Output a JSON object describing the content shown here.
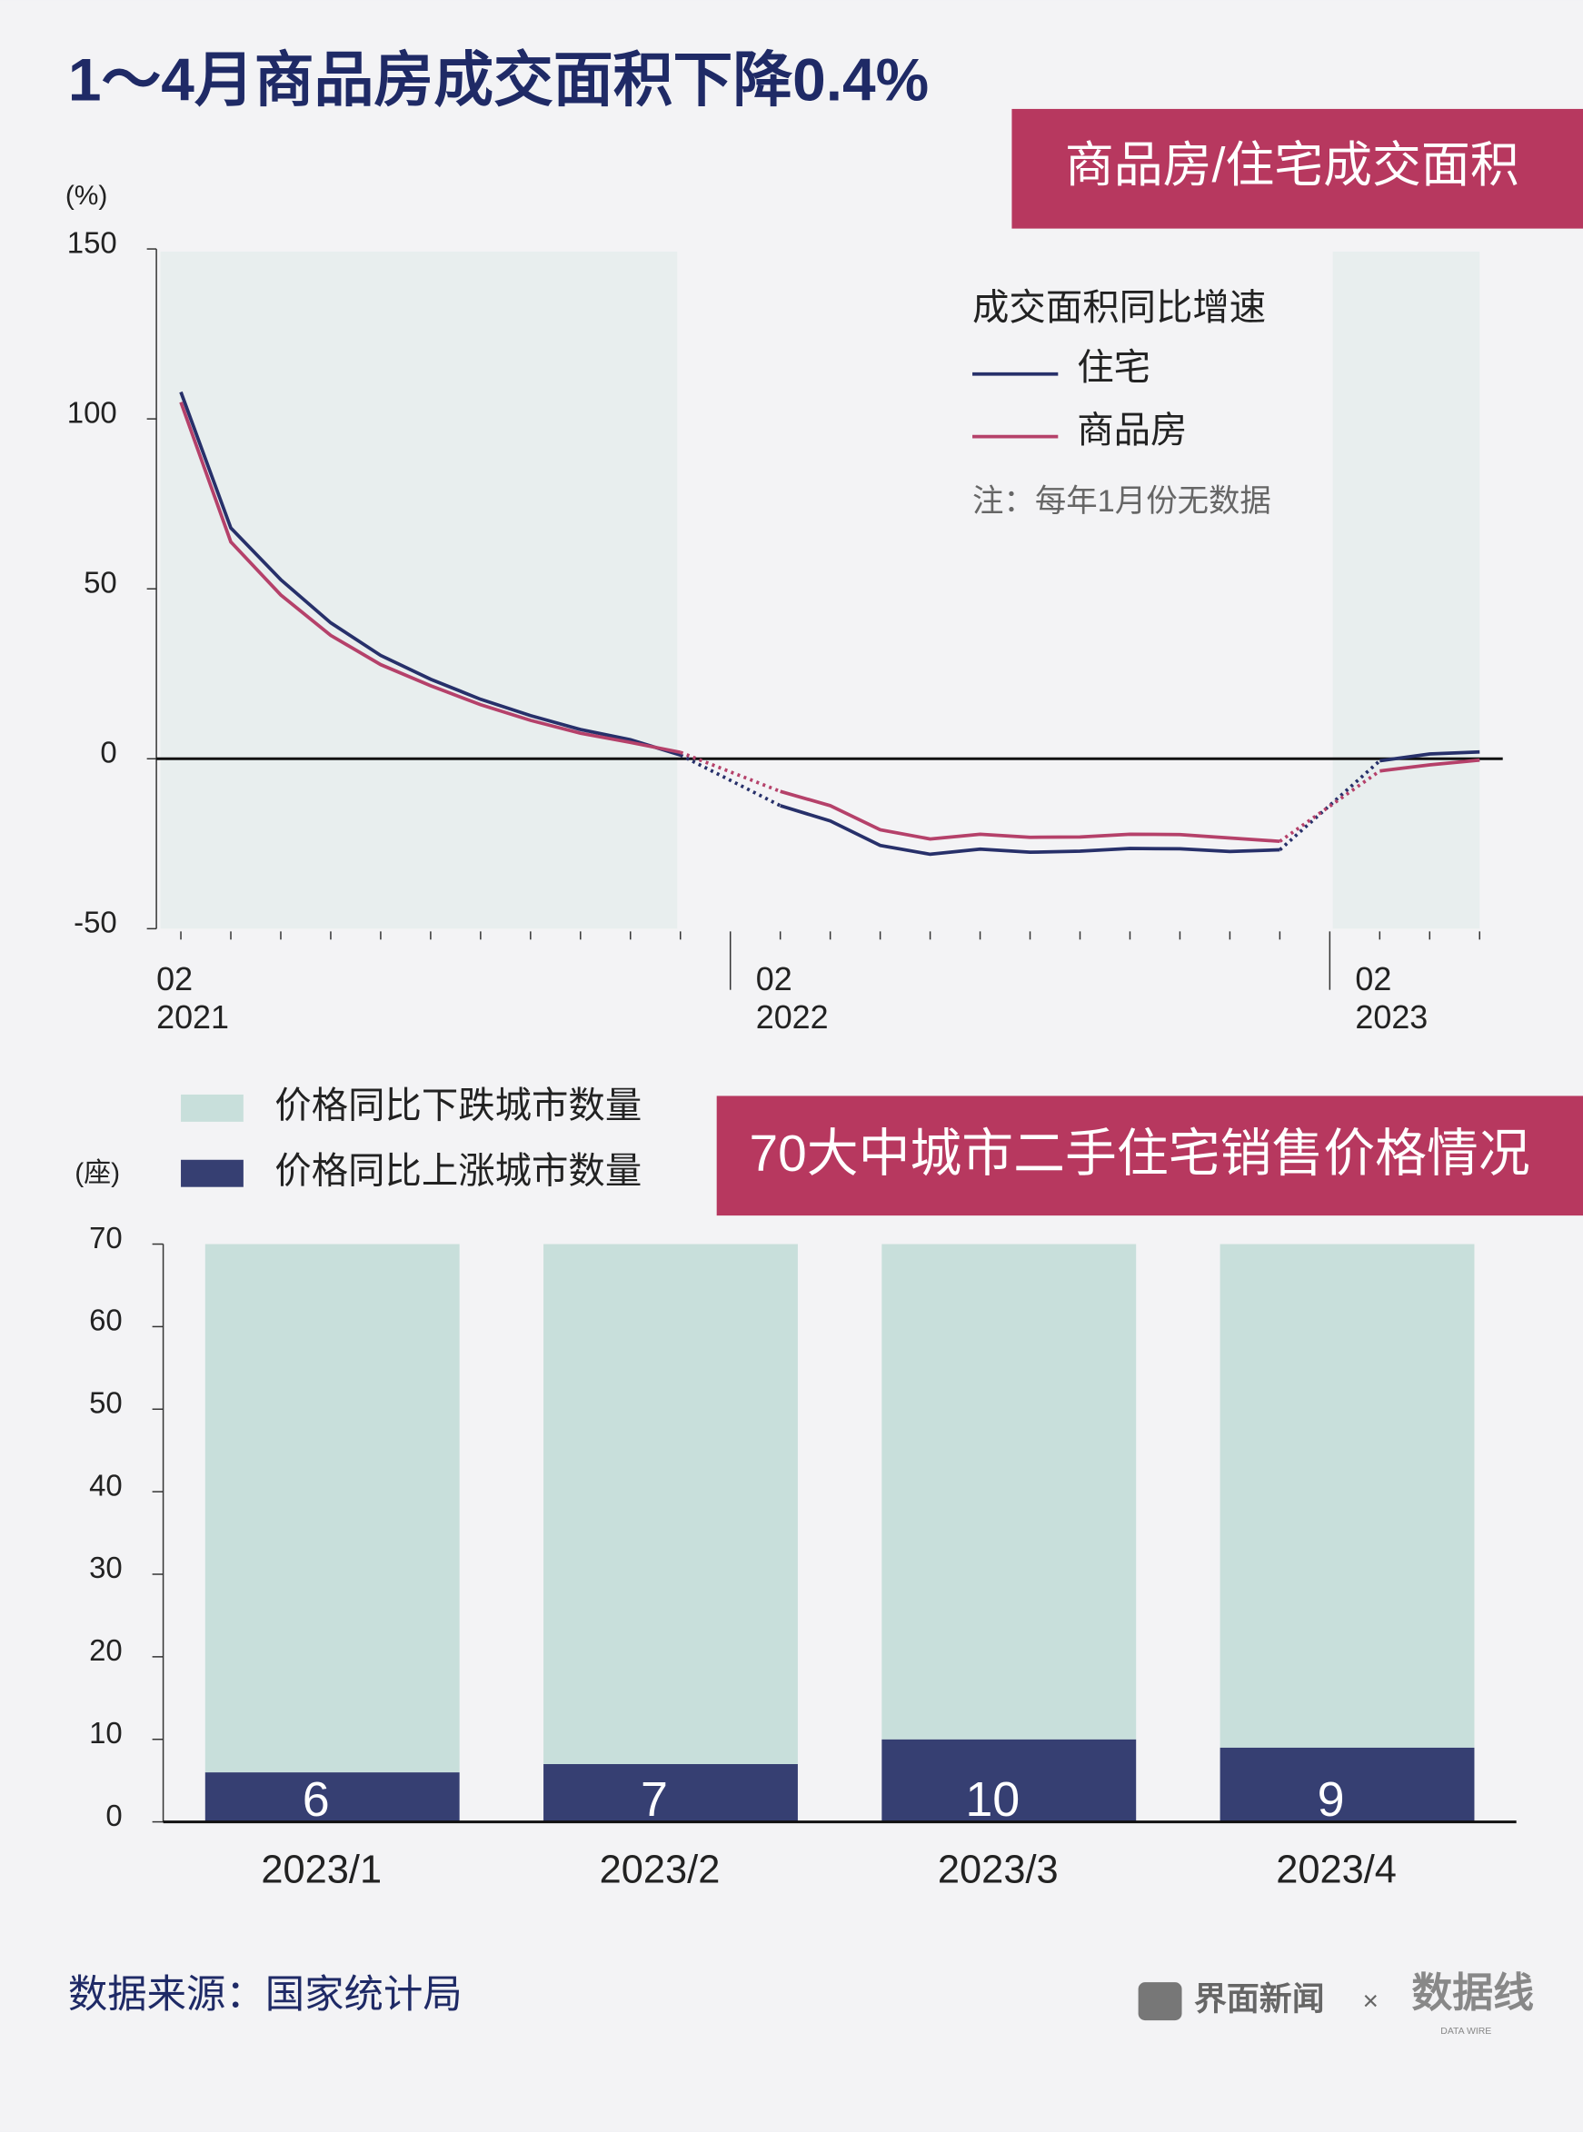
{
  "title": "1～4月商品房成交面积下降0.4%",
  "source": "数据来源：国家统计局",
  "brand": [
    "界面新闻",
    "×",
    "数据线",
    "DATA WIRE"
  ],
  "chart_data": [
    {
      "type": "line",
      "title": "商品房/住宅成交面积",
      "y_unit": "(%)",
      "legend_title": "成交面积同比增速",
      "note": "注：每年1月份无数据",
      "categories": [
        "02",
        null,
        null,
        null,
        null,
        null,
        null,
        null,
        null,
        null,
        null,
        null,
        "02",
        null,
        null,
        null,
        null,
        null,
        null,
        null,
        null,
        null,
        null,
        null,
        "02",
        null,
        null
      ],
      "year_labels": [
        "2021",
        "2022",
        "2023"
      ],
      "series": [
        {
          "name": "住宅",
          "color": "#27306a",
          "values": [
            107.9,
            67.9,
            52.7,
            40.0,
            30.4,
            23.4,
            17.5,
            12.7,
            8.6,
            5.6,
            1.1,
            null,
            -13.8,
            -18.3,
            -25.5,
            -28.1,
            -26.6,
            -27.5,
            -27.2,
            -26.4,
            -26.5,
            -27.3,
            -26.8,
            null,
            -0.6,
            1.4,
            2.0
          ]
        },
        {
          "name": "商品房",
          "color": "#b5416a",
          "values": [
            104.9,
            63.8,
            48.2,
            36.3,
            27.7,
            21.5,
            15.9,
            11.3,
            7.5,
            4.8,
            1.9,
            null,
            -9.6,
            -13.8,
            -20.9,
            -23.6,
            -22.2,
            -23.1,
            -23.0,
            -22.2,
            -22.3,
            -23.3,
            -24.3,
            null,
            -3.6,
            -1.8,
            -0.4
          ]
        }
      ],
      "ylim": [
        -50,
        150
      ],
      "yticks": [
        -50,
        0,
        50,
        100,
        150
      ]
    },
    {
      "type": "stacked_bar",
      "title": "70大中城市二手住宅销售价格情况",
      "y_unit": "(座)",
      "categories": [
        "2023/1",
        "2023/2",
        "2023/3",
        "2023/4"
      ],
      "series": [
        {
          "name": "价格同比上涨城市数量",
          "color": "#363f72",
          "values": [
            6,
            7,
            10,
            9
          ]
        },
        {
          "name": "价格同比下跌城市数量",
          "color": "#c8dfdb",
          "values": [
            64,
            63,
            60,
            61
          ]
        }
      ],
      "ylim": [
        0,
        70
      ],
      "yticks": [
        0,
        10,
        20,
        30,
        40,
        50,
        60,
        70
      ]
    }
  ]
}
